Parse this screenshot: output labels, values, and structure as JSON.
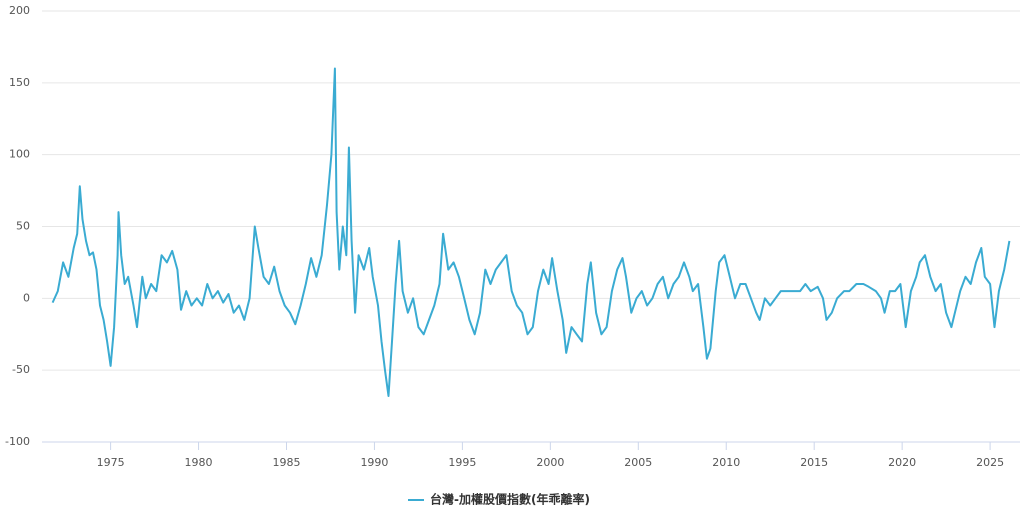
{
  "chart_data": {
    "type": "line",
    "x": [
      1971.7,
      1972.0,
      1972.3,
      1972.6,
      1972.9,
      1973.1,
      1973.25,
      1973.4,
      1973.6,
      1973.8,
      1974.0,
      1974.2,
      1974.4,
      1974.6,
      1974.8,
      1975.0,
      1975.2,
      1975.4,
      1975.45,
      1975.6,
      1975.8,
      1976.0,
      1976.3,
      1976.5,
      1976.8,
      1977.0,
      1977.3,
      1977.6,
      1977.9,
      1978.2,
      1978.5,
      1978.8,
      1979.0,
      1979.3,
      1979.6,
      1979.9,
      1980.2,
      1980.5,
      1980.8,
      1981.1,
      1981.4,
      1981.7,
      1982.0,
      1982.3,
      1982.6,
      1982.9,
      1983.2,
      1983.4,
      1983.7,
      1984.0,
      1984.3,
      1984.6,
      1984.9,
      1985.2,
      1985.5,
      1985.8,
      1986.1,
      1986.4,
      1986.7,
      1987.0,
      1987.3,
      1987.55,
      1987.75,
      1987.85,
      1988.0,
      1988.2,
      1988.4,
      1988.55,
      1988.7,
      1988.9,
      1989.1,
      1989.4,
      1989.7,
      1989.9,
      1990.2,
      1990.4,
      1990.6,
      1990.8,
      1991.0,
      1991.2,
      1991.4,
      1991.6,
      1991.9,
      1992.2,
      1992.5,
      1992.8,
      1993.1,
      1993.4,
      1993.7,
      1993.9,
      1994.2,
      1994.5,
      1994.8,
      1995.1,
      1995.4,
      1995.7,
      1996.0,
      1996.3,
      1996.6,
      1996.9,
      1997.2,
      1997.5,
      1997.8,
      1998.1,
      1998.4,
      1998.7,
      1999.0,
      1999.3,
      1999.6,
      1999.9,
      2000.1,
      2000.4,
      2000.7,
      2000.9,
      2001.2,
      2001.5,
      2001.8,
      2002.1,
      2002.3,
      2002.6,
      2002.9,
      2003.2,
      2003.5,
      2003.8,
      2004.1,
      2004.3,
      2004.6,
      2004.9,
      2005.2,
      2005.5,
      2005.8,
      2006.1,
      2006.4,
      2006.7,
      2007.0,
      2007.3,
      2007.6,
      2007.9,
      2008.1,
      2008.4,
      2008.7,
      2008.9,
      2009.1,
      2009.4,
      2009.6,
      2009.9,
      2010.2,
      2010.5,
      2010.8,
      2011.1,
      2011.4,
      2011.7,
      2011.9,
      2012.2,
      2012.5,
      2012.8,
      2013.1,
      2013.5,
      2013.9,
      2014.2,
      2014.5,
      2014.8,
      2015.2,
      2015.5,
      2015.7,
      2016.0,
      2016.3,
      2016.7,
      2017.0,
      2017.4,
      2017.8,
      2018.1,
      2018.5,
      2018.8,
      2019.0,
      2019.3,
      2019.6,
      2019.9,
      2020.2,
      2020.5,
      2020.8,
      2021.0,
      2021.3,
      2021.6,
      2021.9,
      2022.2,
      2022.5,
      2022.8,
      2023.0,
      2023.3,
      2023.6,
      2023.9,
      2024.2,
      2024.5,
      2024.7,
      2025.0,
      2025.25,
      2025.5,
      2025.8,
      2026.1
    ],
    "series": [
      {
        "name": "台灣-加權股價指數(年乖離率)",
        "color": "#3aabd2",
        "values": [
          -3,
          5,
          25,
          15,
          35,
          45,
          78,
          55,
          40,
          30,
          32,
          20,
          -5,
          -15,
          -30,
          -47,
          -20,
          30,
          60,
          30,
          10,
          15,
          -5,
          -20,
          15,
          0,
          10,
          5,
          30,
          25,
          33,
          20,
          -8,
          5,
          -5,
          0,
          -5,
          10,
          0,
          5,
          -3,
          3,
          -10,
          -5,
          -15,
          0,
          50,
          35,
          15,
          10,
          22,
          5,
          -5,
          -10,
          -18,
          -5,
          10,
          28,
          15,
          30,
          65,
          100,
          160,
          60,
          20,
          50,
          30,
          105,
          40,
          -10,
          30,
          20,
          35,
          15,
          -5,
          -30,
          -50,
          -68,
          -30,
          10,
          40,
          5,
          -10,
          0,
          -20,
          -25,
          -15,
          -5,
          10,
          45,
          20,
          25,
          15,
          0,
          -15,
          -25,
          -10,
          20,
          10,
          20,
          25,
          30,
          5,
          -5,
          -10,
          -25,
          -20,
          5,
          20,
          10,
          28,
          5,
          -15,
          -38,
          -20,
          -25,
          -30,
          10,
          25,
          -10,
          -25,
          -20,
          5,
          20,
          28,
          15,
          -10,
          0,
          5,
          -5,
          0,
          10,
          15,
          0,
          10,
          15,
          25,
          15,
          5,
          10,
          -20,
          -42,
          -35,
          5,
          25,
          30,
          15,
          0,
          10,
          10,
          0,
          -10,
          -15,
          0,
          -5,
          0,
          5,
          5,
          5,
          5,
          10,
          5,
          8,
          0,
          -15,
          -10,
          0,
          5,
          5,
          10,
          10,
          8,
          5,
          0,
          -10,
          5,
          5,
          10,
          -20,
          5,
          15,
          25,
          30,
          15,
          5,
          10,
          -10,
          -20,
          -10,
          5,
          15,
          10,
          25,
          35,
          15,
          10,
          -20,
          5,
          20,
          40
        ]
      }
    ],
    "xlim": [
      1971.1,
      2026.7
    ],
    "xticks": [
      1975,
      1980,
      1985,
      1990,
      1995,
      2000,
      2005,
      2010,
      2015,
      2020,
      2025
    ],
    "ylim": [
      -100,
      200
    ],
    "yticks": [
      -100,
      -50,
      0,
      50,
      100,
      150,
      200
    ],
    "grid": true
  }
}
